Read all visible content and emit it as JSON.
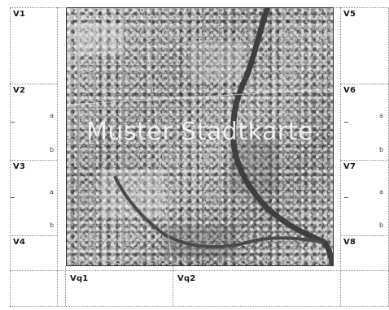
{
  "map": {
    "watermark": "Muster Stadtkarte"
  },
  "cells": {
    "left": [
      "V1",
      "V2",
      "V3",
      "V4"
    ],
    "right": [
      "V5",
      "V6",
      "V7",
      "V8"
    ]
  },
  "bottom": {
    "labels": [
      "Vq1",
      "Vq2"
    ]
  },
  "marks": {
    "a": "a",
    "b": "b"
  },
  "colors": {
    "river": "#3f3f3f",
    "guide": "#8a8a8a",
    "frame": "#333333"
  }
}
